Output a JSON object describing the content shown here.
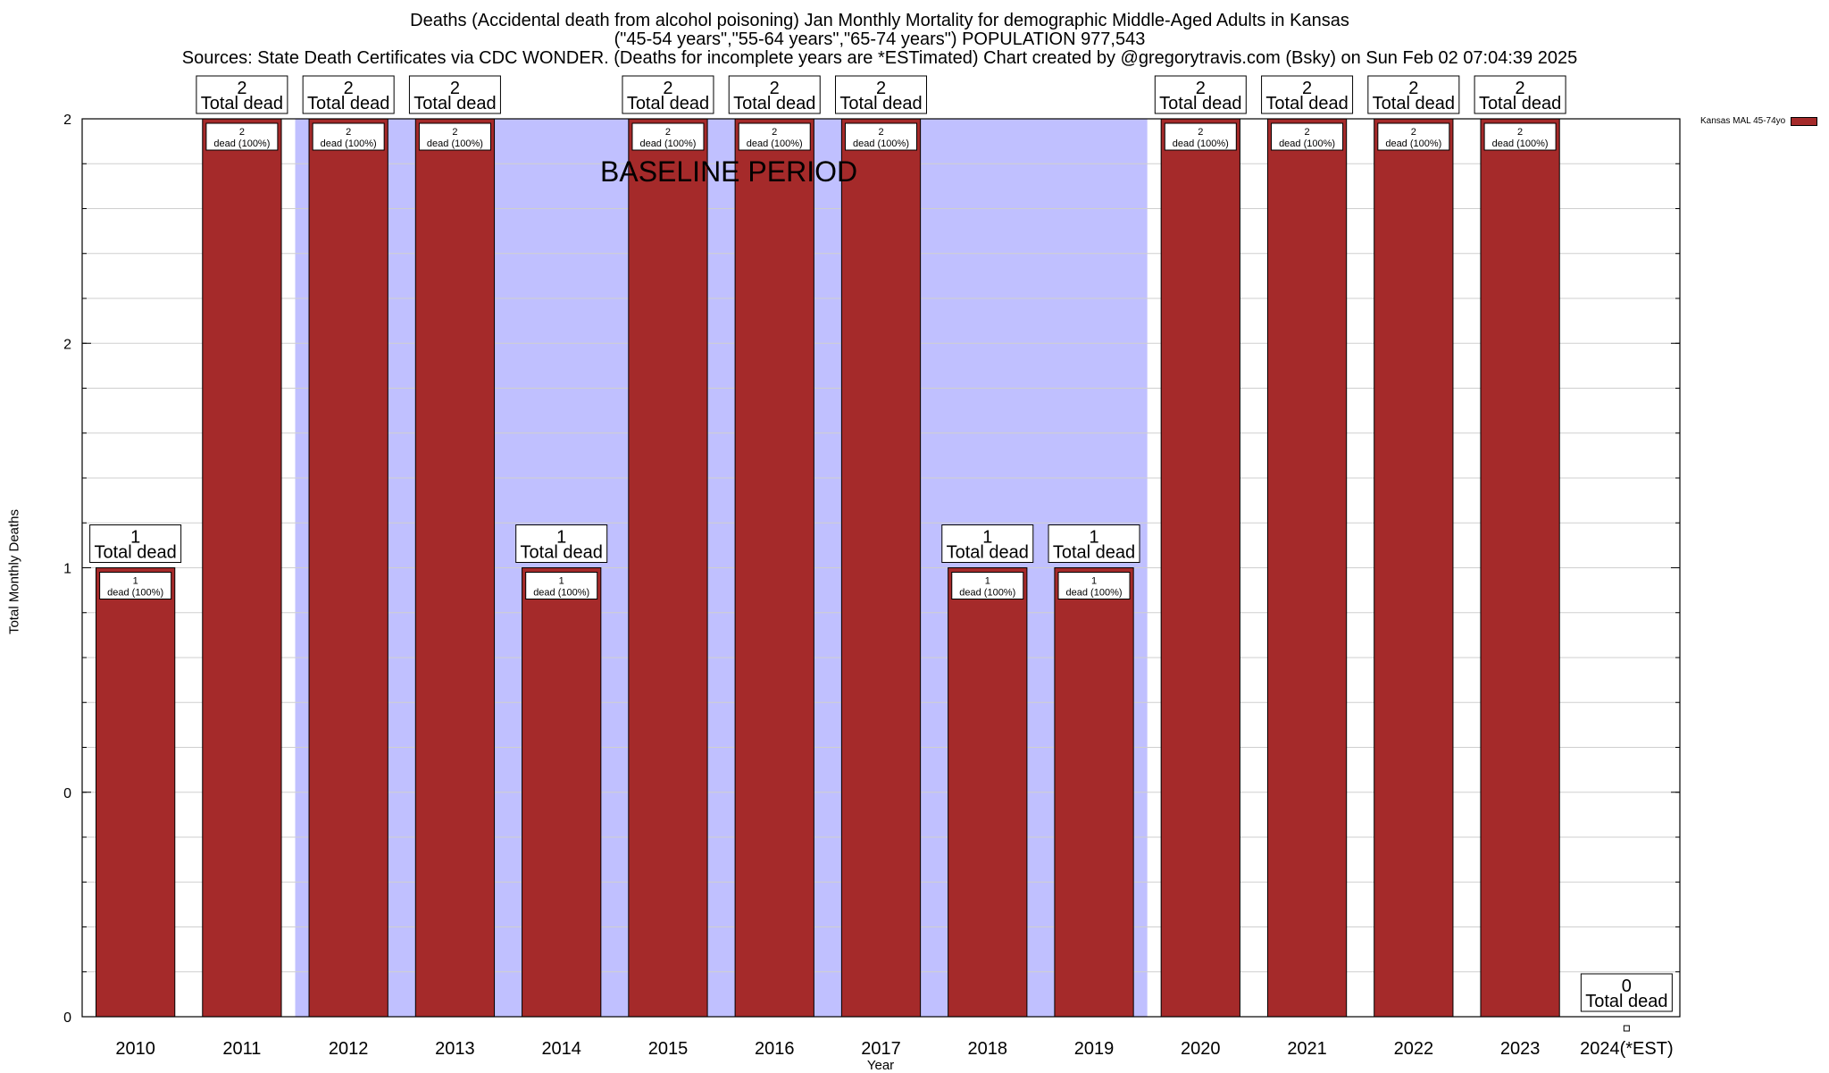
{
  "header": {
    "title_line1": "Deaths (Accidental death from alcohol poisoning) Jan Monthly Mortality for demographic Middle-Aged Adults in Kansas",
    "title_line2": "(\"45-54 years\",\"55-64 years\",\"65-74 years\") POPULATION 977,543",
    "title_line3": "Sources: State Death Certificates via CDC WONDER. (Deaths for incomplete years are *ESTimated)              Chart created by @gregorytravis.com (Bsky) on Sun Feb 02 07:04:39 2025"
  },
  "chart_data": {
    "type": "bar",
    "title": "Deaths (Accidental death from alcohol poisoning) Jan Monthly Mortality for demographic Middle-Aged Adults in Kansas",
    "xlabel": "Year",
    "ylabel": "Total Monthly Deaths",
    "ylim": [
      0,
      2
    ],
    "y_tick_labels": [
      "0",
      "0",
      "1",
      "2",
      "2"
    ],
    "grid": true,
    "legend_position": "top-right",
    "baseline_period": {
      "label": "BASELINE PERIOD",
      "from": "2012",
      "to": "2019"
    },
    "categories": [
      "2010",
      "2011",
      "2012",
      "2013",
      "2014",
      "2015",
      "2016",
      "2017",
      "2018",
      "2019",
      "2020",
      "2021",
      "2022",
      "2023",
      "2024(*EST)"
    ],
    "series": [
      {
        "name": "Kansas MAL 45-74yo",
        "color": "#a52a2a",
        "values": [
          1,
          2,
          2,
          2,
          1,
          2,
          2,
          2,
          1,
          1,
          2,
          2,
          2,
          2,
          0
        ]
      }
    ],
    "total_labels": [
      "1",
      "2",
      "2",
      "2",
      "1",
      "2",
      "2",
      "2",
      "1",
      "1",
      "2",
      "2",
      "2",
      "2",
      "0"
    ],
    "total_label_suffix": "Total dead",
    "bar_labels": [
      "1",
      "2",
      "2",
      "2",
      "1",
      "2",
      "2",
      "2",
      "1",
      "1",
      "2",
      "2",
      "2",
      "2",
      ""
    ],
    "bar_label_suffix": "dead (100%)"
  },
  "colors": {
    "bar": "#a52a2a",
    "baseline_band": "#c0c0ff"
  }
}
